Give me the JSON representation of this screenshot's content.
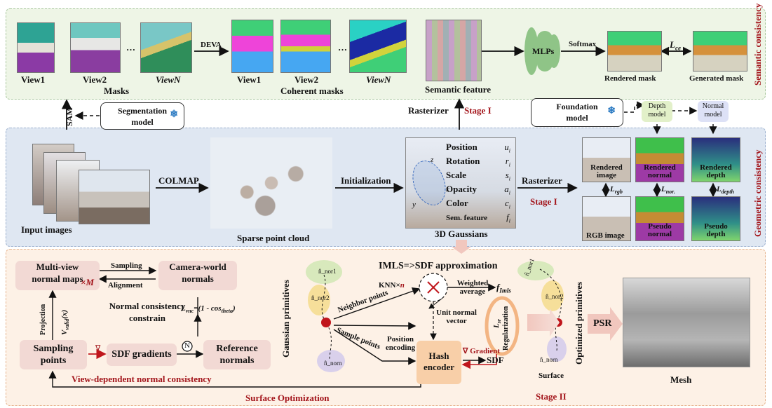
{
  "semantic": {
    "views": [
      "View1",
      "View2",
      "…",
      "ViewN"
    ],
    "views_coherent": [
      "View1",
      "View2",
      "…",
      "ViewN"
    ],
    "masks_label": "Masks",
    "coherent_label": "Coherent masks",
    "deva": "DEVA",
    "semantic_feature": "Semantic feature",
    "mlps": "MLPs",
    "softmax": "Softmax",
    "l_ce": "L",
    "l_ce_sub": "ce",
    "rendered_mask": "Rendered mask",
    "generated_mask": "Generated mask",
    "side_label": "Semantic consistency"
  },
  "middle": {
    "sam": "SAM",
    "seg_model": "Segmentation model",
    "rasterizer": "Rasterizer",
    "stage1": "Stage I",
    "foundation_model": "Foundation model",
    "depth_model": "Depth model",
    "normal_model": "Normal model"
  },
  "geometric": {
    "input_images": "Input images",
    "colmap": "COLMAP",
    "sparse_cloud": "Sparse point cloud",
    "initialization": "Initialization",
    "gaussians_label": "3D Gaussians",
    "attributes": [
      {
        "name": "Position",
        "sym": "u",
        "sub": "i"
      },
      {
        "name": "Rotation",
        "sym": "r",
        "sub": "i"
      },
      {
        "name": "Scale",
        "sym": "s",
        "sub": "i"
      },
      {
        "name": "Opacity",
        "sym": "a",
        "sub": "i"
      },
      {
        "name": "Color",
        "sym": "c",
        "sub": "i"
      },
      {
        "name": "Sem. feature",
        "sym": "f",
        "sub": "i"
      }
    ],
    "rasterizer": "Rasterizer",
    "stage1": "Stage I",
    "rendered_image": "Rendered image",
    "rendered_normal": "Rendered normal",
    "rendered_depth": "Rendered depth",
    "rgb_image": "RGB image",
    "pseudo_normal": "Pseudo normal",
    "pseudo_depth": "Pseudo depth",
    "l_rgb": "L",
    "l_rgb_sub": "rgb",
    "l_nor": "L",
    "l_nor_sub": "nor.",
    "l_depth": "L",
    "l_depth_sub": "depth",
    "side_label": "Geometric consistency"
  },
  "surface": {
    "multiview": "Multi-view normal maps",
    "times_m": "×M",
    "sampling": "Sampling",
    "alignment": "Alignment",
    "camera_world": "Camera-world normals",
    "normal_constrain": "Normal consistency constrain",
    "l_vnc": "L",
    "l_vnc_sub": "vnc",
    "l_vnc_formula": "=(1 - cos",
    "l_vnc_theta": "theta",
    "projection": "Projection",
    "v_valid": "V",
    "v_valid_sub": "valid",
    "v_valid_arg": "(x)",
    "sampling_points": "Sampling points",
    "sdf_gradients": "SDF gradients",
    "reference_normals": "Reference normals",
    "nabla": "∇",
    "n_circle": "N",
    "vdnc": "View-dependent normal consistency",
    "surface_optimization": "Surface Optimization",
    "gaussian_primitives": "Gaussian primitives",
    "imls": "IMLS=>SDF approximation",
    "knn": "KNN×",
    "knn_n": "n",
    "neighbor_points": "Neighbor points",
    "sample_points": "Sample points",
    "weighted_average": "Weighted average",
    "f_imls": "f",
    "f_imls_sub": "Imls",
    "unit_normal": "Unit normal vector",
    "position_encoding": "Position encoding",
    "gradient": "∇ Gradient",
    "hash_encoder": "Hash encoder",
    "sdf": "SDF",
    "l_sr": "L",
    "l_sr_sub": "sr",
    "regularization": "Regularization",
    "optimized_primitives": "Optimized primitives",
    "surface_label": "Surface",
    "psr": "PSR",
    "mesh": "Mesh",
    "stage2": "Stage II",
    "n_nor1": "n̂_nor1",
    "n_nor2": "n̂_nor2",
    "n_norn": "n̂_norn"
  },
  "colors": {
    "semantic_bg": "#eef5e6",
    "geometric_bg": "#dfe7f2",
    "surface_bg": "#fdf1e6",
    "accent_red": "#a3151b",
    "mlp_green": "#8fc487",
    "box_pink": "#f2d9d4",
    "hash_orange": "#f8cfa8"
  }
}
